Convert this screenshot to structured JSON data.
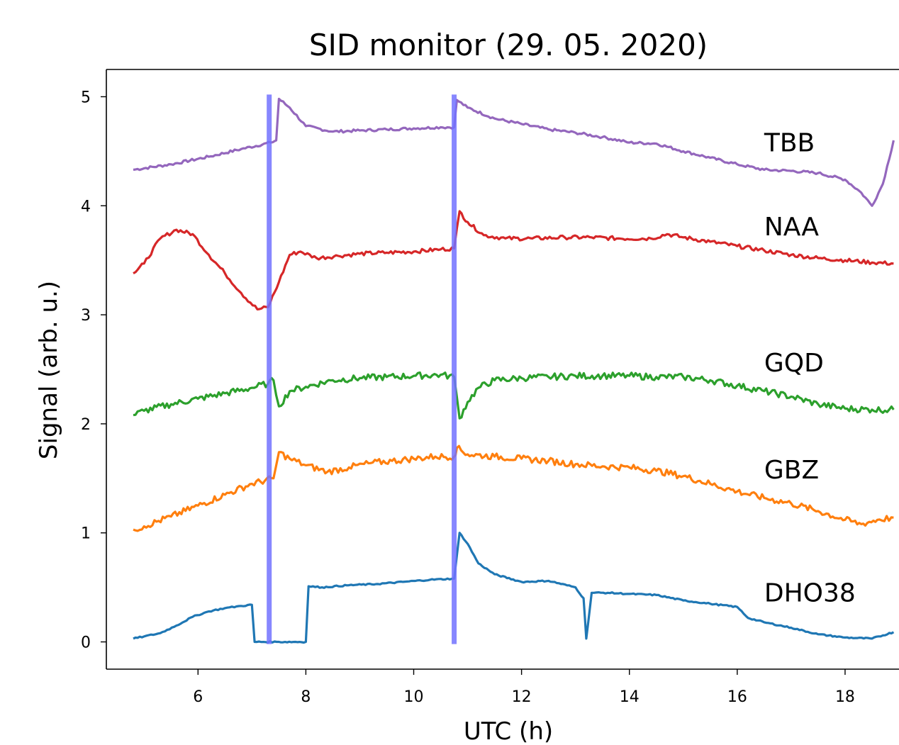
{
  "chart_data": {
    "type": "line",
    "title": "SID monitor (29. 05. 2020)",
    "xlabel": "UTC (h)",
    "ylabel": "Signal (arb. u.)",
    "xlim": [
      4.3,
      19.0
    ],
    "ylim": [
      -0.25,
      5.25
    ],
    "xticks": [
      6,
      8,
      10,
      12,
      14,
      16,
      18
    ],
    "yticks": [
      0,
      1,
      2,
      3,
      4,
      5
    ],
    "grid": false,
    "vlines": [
      {
        "x": 7.32,
        "color": "#7272ff"
      },
      {
        "x": 10.75,
        "color": "#7272ff"
      }
    ],
    "series": [
      {
        "name": "TBB",
        "color": "#9467bd",
        "label_pos": [
          16.5,
          4.5
        ],
        "points": [
          [
            4.8,
            4.33
          ],
          [
            5.5,
            4.38
          ],
          [
            6.2,
            4.45
          ],
          [
            6.8,
            4.52
          ],
          [
            7.35,
            4.58
          ],
          [
            7.45,
            4.6
          ],
          [
            7.5,
            4.98
          ],
          [
            7.7,
            4.9
          ],
          [
            8.0,
            4.73
          ],
          [
            8.5,
            4.68
          ],
          [
            9.0,
            4.69
          ],
          [
            9.5,
            4.7
          ],
          [
            10.0,
            4.71
          ],
          [
            10.5,
            4.72
          ],
          [
            10.75,
            4.72
          ],
          [
            10.8,
            4.97
          ],
          [
            11.0,
            4.9
          ],
          [
            11.5,
            4.8
          ],
          [
            12.0,
            4.75
          ],
          [
            12.5,
            4.7
          ],
          [
            13.0,
            4.67
          ],
          [
            13.5,
            4.63
          ],
          [
            14.0,
            4.58
          ],
          [
            14.5,
            4.57
          ],
          [
            15.0,
            4.5
          ],
          [
            15.5,
            4.44
          ],
          [
            16.0,
            4.38
          ],
          [
            16.5,
            4.33
          ],
          [
            17.0,
            4.32
          ],
          [
            17.5,
            4.3
          ],
          [
            18.0,
            4.24
          ],
          [
            18.3,
            4.12
          ],
          [
            18.5,
            4.0
          ],
          [
            18.7,
            4.2
          ],
          [
            18.9,
            4.6
          ]
        ]
      },
      {
        "name": "NAA",
        "color": "#d62728",
        "label_pos": [
          16.5,
          3.73
        ],
        "points": [
          [
            4.8,
            3.38
          ],
          [
            5.0,
            3.47
          ],
          [
            5.3,
            3.7
          ],
          [
            5.6,
            3.78
          ],
          [
            5.9,
            3.74
          ],
          [
            6.2,
            3.55
          ],
          [
            6.5,
            3.38
          ],
          [
            6.8,
            3.2
          ],
          [
            7.1,
            3.05
          ],
          [
            7.3,
            3.07
          ],
          [
            7.5,
            3.3
          ],
          [
            7.7,
            3.55
          ],
          [
            7.9,
            3.58
          ],
          [
            8.2,
            3.52
          ],
          [
            8.6,
            3.54
          ],
          [
            9.0,
            3.56
          ],
          [
            9.5,
            3.57
          ],
          [
            10.0,
            3.58
          ],
          [
            10.5,
            3.6
          ],
          [
            10.75,
            3.61
          ],
          [
            10.85,
            3.95
          ],
          [
            11.0,
            3.85
          ],
          [
            11.3,
            3.73
          ],
          [
            11.7,
            3.7
          ],
          [
            12.2,
            3.7
          ],
          [
            12.8,
            3.71
          ],
          [
            13.3,
            3.71
          ],
          [
            13.8,
            3.7
          ],
          [
            14.4,
            3.7
          ],
          [
            14.7,
            3.74
          ],
          [
            15.0,
            3.71
          ],
          [
            15.5,
            3.67
          ],
          [
            16.0,
            3.63
          ],
          [
            16.5,
            3.59
          ],
          [
            17.0,
            3.55
          ],
          [
            17.5,
            3.52
          ],
          [
            18.0,
            3.5
          ],
          [
            18.5,
            3.48
          ],
          [
            18.9,
            3.47
          ]
        ]
      },
      {
        "name": "GQD",
        "color": "#2ca02c",
        "label_pos": [
          16.5,
          2.48
        ],
        "points": [
          [
            4.8,
            2.08
          ],
          [
            5.0,
            2.12
          ],
          [
            5.5,
            2.18
          ],
          [
            6.0,
            2.23
          ],
          [
            6.5,
            2.28
          ],
          [
            7.0,
            2.33
          ],
          [
            7.3,
            2.37
          ],
          [
            7.4,
            2.4
          ],
          [
            7.5,
            2.16
          ],
          [
            7.7,
            2.3
          ],
          [
            8.0,
            2.34
          ],
          [
            8.5,
            2.4
          ],
          [
            9.0,
            2.42
          ],
          [
            9.5,
            2.43
          ],
          [
            10.0,
            2.44
          ],
          [
            10.5,
            2.45
          ],
          [
            10.75,
            2.43
          ],
          [
            10.85,
            2.05
          ],
          [
            11.0,
            2.2
          ],
          [
            11.2,
            2.33
          ],
          [
            11.5,
            2.4
          ],
          [
            12.0,
            2.42
          ],
          [
            12.5,
            2.43
          ],
          [
            13.0,
            2.44
          ],
          [
            13.5,
            2.44
          ],
          [
            14.0,
            2.44
          ],
          [
            14.5,
            2.43
          ],
          [
            15.0,
            2.43
          ],
          [
            15.5,
            2.4
          ],
          [
            16.0,
            2.35
          ],
          [
            16.5,
            2.3
          ],
          [
            17.0,
            2.25
          ],
          [
            17.5,
            2.18
          ],
          [
            18.0,
            2.14
          ],
          [
            18.5,
            2.13
          ],
          [
            18.9,
            2.13
          ]
        ]
      },
      {
        "name": "GBZ",
        "color": "#ff7f0e",
        "label_pos": [
          16.5,
          1.5
        ],
        "points": [
          [
            4.8,
            1.03
          ],
          [
            5.0,
            1.06
          ],
          [
            5.5,
            1.15
          ],
          [
            6.0,
            1.25
          ],
          [
            6.5,
            1.35
          ],
          [
            7.0,
            1.45
          ],
          [
            7.4,
            1.5
          ],
          [
            7.5,
            1.74
          ],
          [
            7.7,
            1.68
          ],
          [
            8.0,
            1.62
          ],
          [
            8.4,
            1.56
          ],
          [
            8.8,
            1.6
          ],
          [
            9.2,
            1.64
          ],
          [
            9.6,
            1.66
          ],
          [
            10.0,
            1.68
          ],
          [
            10.4,
            1.7
          ],
          [
            10.75,
            1.7
          ],
          [
            10.8,
            1.78
          ],
          [
            11.0,
            1.72
          ],
          [
            11.5,
            1.7
          ],
          [
            12.0,
            1.68
          ],
          [
            12.5,
            1.66
          ],
          [
            13.0,
            1.63
          ],
          [
            13.5,
            1.61
          ],
          [
            14.0,
            1.6
          ],
          [
            14.5,
            1.57
          ],
          [
            15.0,
            1.52
          ],
          [
            15.5,
            1.45
          ],
          [
            16.0,
            1.38
          ],
          [
            16.5,
            1.32
          ],
          [
            17.0,
            1.27
          ],
          [
            17.5,
            1.2
          ],
          [
            18.0,
            1.12
          ],
          [
            18.3,
            1.08
          ],
          [
            18.6,
            1.12
          ],
          [
            18.9,
            1.14
          ]
        ]
      },
      {
        "name": "DHO38",
        "color": "#1f77b4",
        "label_pos": [
          16.5,
          0.37
        ],
        "points": [
          [
            4.8,
            0.03
          ],
          [
            5.0,
            0.05
          ],
          [
            5.3,
            0.08
          ],
          [
            5.6,
            0.15
          ],
          [
            5.9,
            0.23
          ],
          [
            6.2,
            0.28
          ],
          [
            6.5,
            0.31
          ],
          [
            6.8,
            0.33
          ],
          [
            7.0,
            0.34
          ],
          [
            7.05,
            0.0
          ],
          [
            7.5,
            0.0
          ],
          [
            8.0,
            0.0
          ],
          [
            8.05,
            0.51
          ],
          [
            8.3,
            0.5
          ],
          [
            8.8,
            0.52
          ],
          [
            9.3,
            0.53
          ],
          [
            9.8,
            0.55
          ],
          [
            10.3,
            0.57
          ],
          [
            10.75,
            0.58
          ],
          [
            10.85,
            1.0
          ],
          [
            11.0,
            0.9
          ],
          [
            11.2,
            0.72
          ],
          [
            11.5,
            0.62
          ],
          [
            12.0,
            0.55
          ],
          [
            12.5,
            0.56
          ],
          [
            13.0,
            0.5
          ],
          [
            13.15,
            0.4
          ],
          [
            13.2,
            0.03
          ],
          [
            13.3,
            0.45
          ],
          [
            13.6,
            0.45
          ],
          [
            14.0,
            0.44
          ],
          [
            14.5,
            0.43
          ],
          [
            15.0,
            0.38
          ],
          [
            15.5,
            0.35
          ],
          [
            16.0,
            0.32
          ],
          [
            16.2,
            0.22
          ],
          [
            16.5,
            0.18
          ],
          [
            17.0,
            0.13
          ],
          [
            17.5,
            0.07
          ],
          [
            18.0,
            0.04
          ],
          [
            18.5,
            0.03
          ],
          [
            18.9,
            0.09
          ]
        ]
      }
    ]
  }
}
